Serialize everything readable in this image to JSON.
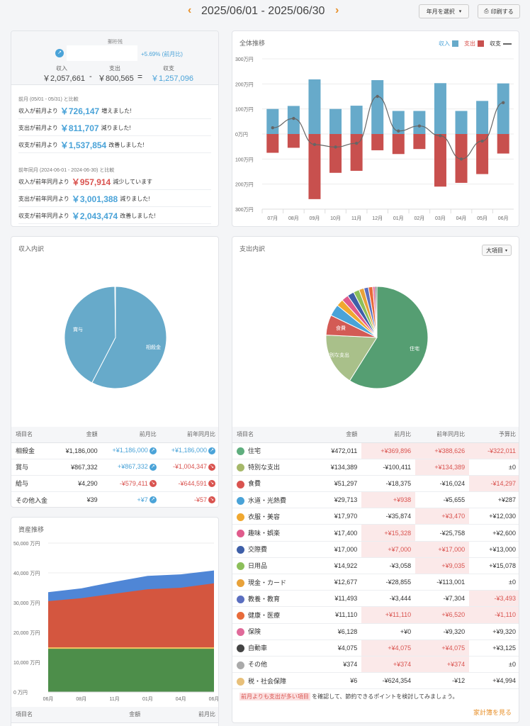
{
  "header": {
    "prev_icon": "chevron-left-icon",
    "next_icon": "chevron-right-icon",
    "period": "2025/06/01 - 2025/06/30",
    "month_select": "年月を選択",
    "print": "印刷する"
  },
  "summary": {
    "label_top": "郵貯残",
    "growth": "+5.69% (前月比)",
    "income_label": "収入",
    "income": "￥2,057,661",
    "expense_label": "支出",
    "expense": "￥800,565",
    "balance_label": "収支",
    "balance": "￥1,257,096",
    "minus": "-",
    "equals": "=",
    "prev_month_heading": "前月 (05/01 - 05/31) と比較",
    "prev_month": [
      {
        "pre": "収入が前月より",
        "value": "￥726,147",
        "post": "増えました!",
        "color": "blue"
      },
      {
        "pre": "支出が前月より",
        "value": "￥811,707",
        "post": "減りました!",
        "color": "blue"
      },
      {
        "pre": "収支が前月より",
        "value": "￥1,537,854",
        "post": "改善しました!",
        "color": "blue"
      }
    ],
    "prev_year_heading": "前年同月 (2024-06-01 - 2024-06-30) と比較",
    "prev_year": [
      {
        "pre": "収入が前年同月より",
        "value": "￥957,914",
        "post": "減少しています",
        "color": "red"
      },
      {
        "pre": "支出が前年同月より",
        "value": "￥3,001,388",
        "post": "減りました!",
        "color": "blue"
      },
      {
        "pre": "収支が前年同月より",
        "value": "￥2,043,474",
        "post": "改善しました!",
        "color": "blue"
      }
    ]
  },
  "trend": {
    "title": "全体推移",
    "legend": [
      "収入",
      "支出",
      "収支"
    ],
    "colors": {
      "income": "#67aaca",
      "expense": "#c8504e",
      "balance": "#666666"
    }
  },
  "chart_data": [
    {
      "type": "bar",
      "title": "全体推移",
      "categories": [
        "07月",
        "08月",
        "09月",
        "10月",
        "11月",
        "12月",
        "01月",
        "02月",
        "03月",
        "04月",
        "05月",
        "06月"
      ],
      "y_ticks": [
        "300万円",
        "200万円",
        "100万円",
        "0万円",
        "100万円",
        "200万円",
        "300万円"
      ],
      "ylim": [
        -300,
        300
      ],
      "series": [
        {
          "name": "収入",
          "values": [
            100,
            112,
            218,
            100,
            113,
            215,
            92,
            92,
            203,
            92,
            132,
            202
          ]
        },
        {
          "name": "支出",
          "values": [
            -75,
            -55,
            -260,
            -155,
            -147,
            -65,
            -80,
            -60,
            -210,
            -195,
            -160,
            -78
          ]
        },
        {
          "name": "収支",
          "values": [
            25,
            62,
            -42,
            -52,
            -37,
            150,
            12,
            32,
            -7,
            -100,
            -28,
            125
          ]
        }
      ]
    },
    {
      "type": "pie",
      "title": "収入内訳",
      "labels": [
        "相殺金",
        "賞与",
        "給与",
        "その他入金"
      ],
      "values": [
        1186000,
        867332,
        4290,
        39
      ]
    },
    {
      "type": "pie",
      "title": "支出内訳",
      "labels": [
        "住宅",
        "特別な支出",
        "食費",
        "水道・光熱費",
        "衣服・美容",
        "趣味・娯楽",
        "交際費",
        "日用品",
        "現金・カード",
        "教養・教育",
        "健康・医療",
        "保険",
        "自動車",
        "その他",
        "税・社会保障"
      ],
      "values": [
        472011,
        134389,
        51297,
        29713,
        17970,
        17400,
        17000,
        14922,
        12677,
        11493,
        11110,
        6128,
        4075,
        374,
        6
      ]
    },
    {
      "type": "area",
      "title": "資産推移",
      "categories": [
        "06月",
        "08月",
        "11月",
        "01月",
        "04月",
        "06月"
      ],
      "y_ticks": [
        "50,000 万円",
        "40,000 万円",
        "30,000 万円",
        "20,000 万円",
        "10,000 万円",
        "0 万円"
      ],
      "ylim": [
        0,
        50000
      ],
      "series": [
        {
          "name": "layer1",
          "values": [
            14500,
            14500,
            14500,
            14500,
            14500,
            14500
          ]
        },
        {
          "name": "layer2",
          "values": [
            15000,
            15000,
            15000,
            15000,
            15000,
            15000
          ]
        },
        {
          "name": "layer3",
          "values": [
            30500,
            31500,
            33000,
            34500,
            35000,
            36500
          ]
        },
        {
          "name": "layer4",
          "values": [
            33500,
            34800,
            37000,
            39000,
            39500,
            40800
          ]
        }
      ]
    }
  ],
  "income_breakdown": {
    "title": "収入内訳",
    "slice_labels": [
      "相殺金",
      "賞与"
    ],
    "headers": [
      "項目名",
      "金額",
      "前月比",
      "前年同月比"
    ],
    "rows": [
      {
        "name": "相殺金",
        "amount": "¥1,186,000",
        "mom": "+¥1,186,000",
        "yoy": "+¥1,186,000",
        "mom_c": "blue",
        "yoy_c": "blue"
      },
      {
        "name": "賞与",
        "amount": "¥867,332",
        "mom": "+¥867,332",
        "yoy": "-¥1,004,347",
        "mom_c": "blue",
        "yoy_c": "red"
      },
      {
        "name": "給与",
        "amount": "¥4,290",
        "mom": "-¥579,411",
        "yoy": "-¥644,591",
        "mom_c": "red",
        "yoy_c": "red"
      },
      {
        "name": "その他入金",
        "amount": "¥39",
        "mom": "+¥7",
        "yoy": "-¥57",
        "mom_c": "blue",
        "yoy_c": "red"
      }
    ]
  },
  "expense_breakdown": {
    "title": "支出内訳",
    "dropdown": "大項目",
    "slice_labels": [
      "住宅",
      "特別な支出",
      "食費"
    ],
    "headers": [
      "項目名",
      "金額",
      "前月比",
      "前年同月比",
      "予算比"
    ],
    "rows": [
      {
        "name": "住宅",
        "amount": "¥472,011",
        "mom": "+¥369,896",
        "yoy": "+¥388,626",
        "bud": "-¥322,011",
        "hm": true,
        "hy": true,
        "hb": true,
        "icon": "#5fae7e"
      },
      {
        "name": "特別な支出",
        "amount": "¥134,389",
        "mom": "-¥100,411",
        "yoy": "+¥134,389",
        "bud": "±0",
        "hm": false,
        "hy": true,
        "hb": false,
        "icon": "#a6b86a"
      },
      {
        "name": "食費",
        "amount": "¥51,297",
        "mom": "-¥18,375",
        "yoy": "-¥16,024",
        "bud": "-¥14,297",
        "hm": false,
        "hy": false,
        "hb": true,
        "icon": "#d9534f"
      },
      {
        "name": "水道・光熱費",
        "amount": "¥29,713",
        "mom": "+¥938",
        "yoy": "-¥5,655",
        "bud": "+¥287",
        "hm": true,
        "hy": false,
        "hb": false,
        "icon": "#4aa3d8"
      },
      {
        "name": "衣服・美容",
        "amount": "¥17,970",
        "mom": "-¥35,874",
        "yoy": "+¥3,470",
        "bud": "+¥12,030",
        "hm": false,
        "hy": true,
        "hb": false,
        "icon": "#f0a830"
      },
      {
        "name": "趣味・娯楽",
        "amount": "¥17,400",
        "mom": "+¥15,328",
        "yoy": "-¥25,758",
        "bud": "+¥2,600",
        "hm": true,
        "hy": false,
        "hb": false,
        "icon": "#e05b8c"
      },
      {
        "name": "交際費",
        "amount": "¥17,000",
        "mom": "+¥7,000",
        "yoy": "+¥17,000",
        "bud": "+¥13,000",
        "hm": true,
        "hy": true,
        "hb": false,
        "icon": "#3e5fa8"
      },
      {
        "name": "日用品",
        "amount": "¥14,922",
        "mom": "-¥3,058",
        "yoy": "+¥9,035",
        "bud": "+¥15,078",
        "hm": false,
        "hy": true,
        "hb": false,
        "icon": "#8cbf5a"
      },
      {
        "name": "現金・カード",
        "amount": "¥12,677",
        "mom": "-¥28,855",
        "yoy": "-¥113,001",
        "bud": "±0",
        "hm": false,
        "hy": false,
        "hb": false,
        "icon": "#e8a23a"
      },
      {
        "name": "教養・教育",
        "amount": "¥11,493",
        "mom": "-¥3,444",
        "yoy": "-¥7,304",
        "bud": "-¥3,493",
        "hm": false,
        "hy": false,
        "hb": true,
        "icon": "#5b6fc0"
      },
      {
        "name": "健康・医療",
        "amount": "¥11,110",
        "mom": "+¥11,110",
        "yoy": "+¥6,520",
        "bud": "-¥1,110",
        "hm": true,
        "hy": true,
        "hb": true,
        "icon": "#e86b3a"
      },
      {
        "name": "保険",
        "amount": "¥6,128",
        "mom": "+¥0",
        "yoy": "-¥9,320",
        "bud": "+¥9,320",
        "hm": false,
        "hy": false,
        "hb": false,
        "icon": "#e06a9a"
      },
      {
        "name": "自動車",
        "amount": "¥4,075",
        "mom": "+¥4,075",
        "yoy": "+¥4,075",
        "bud": "+¥3,125",
        "hm": true,
        "hy": true,
        "hb": false,
        "icon": "#444444"
      },
      {
        "name": "その他",
        "amount": "¥374",
        "mom": "+¥374",
        "yoy": "+¥374",
        "bud": "±0",
        "hm": true,
        "hy": true,
        "hb": false,
        "icon": "#aaaaaa"
      },
      {
        "name": "税・社会保障",
        "amount": "¥6",
        "mom": "-¥624,354",
        "yoy": "-¥12",
        "bud": "+¥4,994",
        "hm": false,
        "hy": false,
        "hb": false,
        "icon": "#e8c07a"
      }
    ],
    "note_highlight": "前月よりも支出が多い項目",
    "note_rest": "を確認して、節約できるポイントを検討してみましょう。",
    "link": "家計簿を見る"
  },
  "assets": {
    "title": "資産推移",
    "headers": [
      "項目名",
      "金額",
      "前月比"
    ]
  }
}
